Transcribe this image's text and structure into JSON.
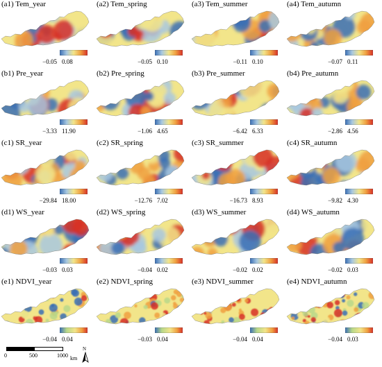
{
  "panels": [
    {
      "title": "(a1) Tem_year",
      "min": "−0.05",
      "max": "0.08",
      "scheme": "tem"
    },
    {
      "title": "(a2) Tem_spring",
      "min": "−0.05",
      "max": "0.10",
      "scheme": "tem"
    },
    {
      "title": "(a3) Tem_summer",
      "min": "−0.11",
      "max": "0.10",
      "scheme": "tem"
    },
    {
      "title": "(a4) Tem_autumn",
      "min": "−0.07",
      "max": "0.11",
      "scheme": "tem"
    },
    {
      "title": "(b1) Pre_year",
      "min": "−3.33",
      "max": "11.90",
      "scheme": "pre"
    },
    {
      "title": "(b2) Pre_spring",
      "min": "−1.06",
      "max": "4.65",
      "scheme": "pre"
    },
    {
      "title": "(b3) Pre_summer",
      "min": "−6.42",
      "max": "6.33",
      "scheme": "pre"
    },
    {
      "title": "(b4) Pre_autumn",
      "min": "−2.86",
      "max": "4.56",
      "scheme": "pre"
    },
    {
      "title": "(c1) SR_year",
      "min": "−29.84",
      "max": "18.00",
      "scheme": "sr"
    },
    {
      "title": "(c2) SR_spring",
      "min": "−12.76",
      "max": "7.02",
      "scheme": "sr"
    },
    {
      "title": "(c3) SR_summer",
      "min": "−16.73",
      "max": "8.93",
      "scheme": "sr"
    },
    {
      "title": "(c4) SR_autumn",
      "min": "−9.82",
      "max": "4.30",
      "scheme": "sr"
    },
    {
      "title": "(d1) WS_year",
      "min": "−0.03",
      "max": "0.03",
      "scheme": "ws"
    },
    {
      "title": "(d2) WS_spring",
      "min": "−0.04",
      "max": "0.02",
      "scheme": "ws"
    },
    {
      "title": "(d3) WS_summer",
      "min": "−0.02",
      "max": "0.02",
      "scheme": "ws"
    },
    {
      "title": "(d4) WS_autumn",
      "min": "−0.02",
      "max": "0.03",
      "scheme": "ws"
    },
    {
      "title": "(e1) NDVI_year",
      "min": "−0.04",
      "max": "0.04",
      "scheme": "ndvi"
    },
    {
      "title": "(e2) NDVI_spring",
      "min": "−0.03",
      "max": "0.04",
      "scheme": "ndvi"
    },
    {
      "title": "(e3) NDVI_summer",
      "min": "−0.04",
      "max": "0.04",
      "scheme": "ndvi"
    },
    {
      "title": "(e4) NDVI_autumn",
      "min": "−0.04",
      "max": "0.03",
      "scheme": "ndvi"
    }
  ],
  "colormap": {
    "low": "#3a6fb5",
    "mid_low": "#a8c8e0",
    "mid": "#f2e58a",
    "mid_high": "#f0a040",
    "high": "#d73027",
    "ndvi_low": "#b8d88a"
  },
  "scale_bar": {
    "labels": [
      "0",
      "500",
      "1000"
    ],
    "unit": "km"
  },
  "north_arrow": {
    "label": "N"
  }
}
